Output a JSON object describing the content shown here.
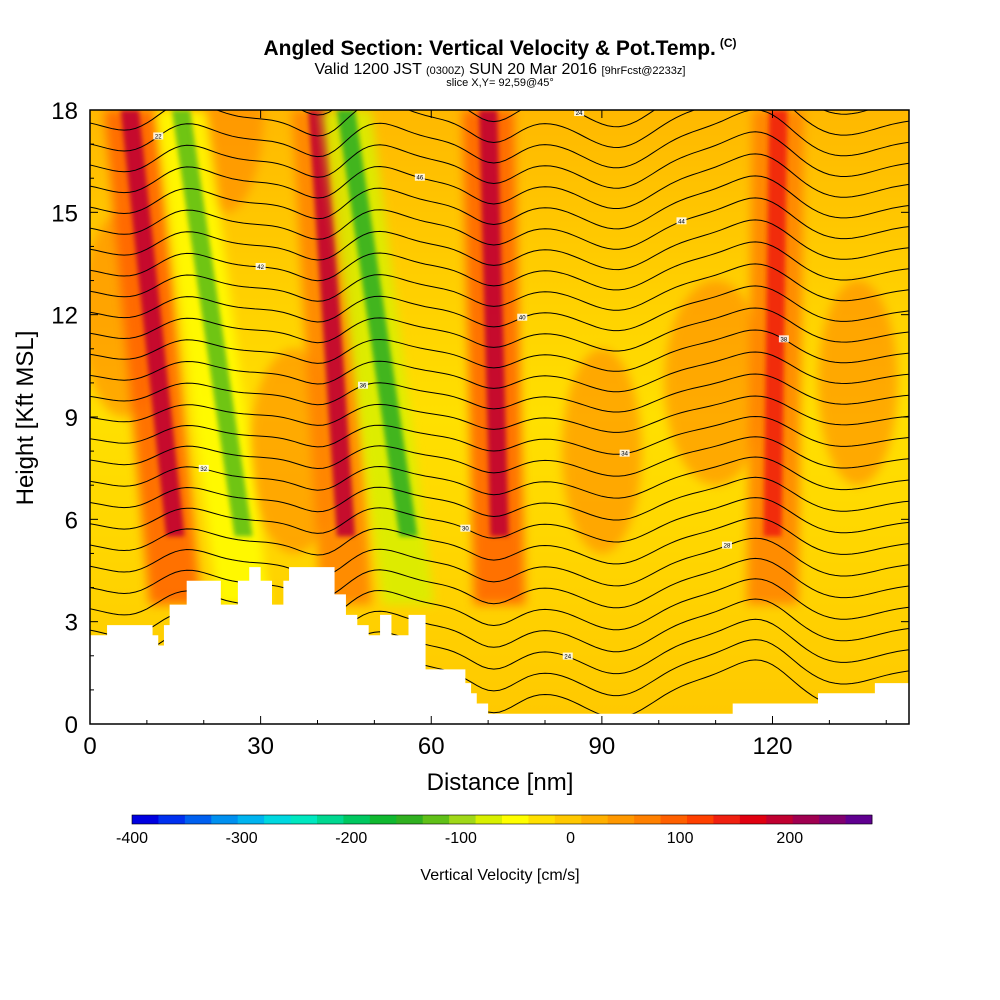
{
  "header": {
    "title": "Angled Section: Vertical Velocity & Pot.Temp.",
    "title_units": "(C)",
    "valid_prefix": "Valid 1200 JST",
    "valid_utc": "(0300Z)",
    "valid_date": "SUN 20 Mar 2016",
    "forecast": "[9hrFcst@2233z]",
    "slice": "slice X,Y= 92,59@45°"
  },
  "chart_data": {
    "type": "heatmap",
    "xlabel": "Distance [nm]",
    "ylabel": "Height [Kft MSL]",
    "xlim": [
      0,
      144
    ],
    "ylim": [
      0,
      18
    ],
    "x_ticks": [
      0,
      30,
      60,
      90,
      120
    ],
    "y_ticks": [
      0,
      3,
      6,
      9,
      12,
      15,
      18
    ],
    "grid": false,
    "field": "Vertical Velocity",
    "overlay": "Potential temperature contours (black lines)",
    "updraft_plumes": [
      {
        "x_top": 7,
        "x_bottom": 15,
        "peak_cm_s": 200
      },
      {
        "x_top": 40,
        "x_bottom": 45,
        "peak_cm_s": 180
      },
      {
        "x_top": 70,
        "x_bottom": 72,
        "peak_cm_s": 200
      },
      {
        "x_top": 121,
        "x_bottom": 120,
        "peak_cm_s": 150
      }
    ],
    "downdraft_bands": [
      {
        "x_top": 16,
        "x_bottom": 27,
        "min_cm_s": -120
      },
      {
        "x_top": 45,
        "x_bottom": 56,
        "min_cm_s": -150
      }
    ],
    "terrain_kft": {
      "x": [
        0,
        2,
        3,
        10,
        11,
        12,
        13,
        14,
        17,
        23,
        26,
        28,
        30,
        32,
        34,
        35,
        36,
        42,
        43,
        45,
        47,
        49,
        51,
        53,
        56,
        59,
        64,
        66,
        67,
        68,
        70,
        100,
        104,
        107,
        110,
        113,
        117,
        121,
        124,
        128,
        132,
        138,
        144
      ],
      "kft": [
        2.6,
        2.6,
        2.9,
        2.9,
        2.6,
        2.3,
        2.9,
        3.5,
        4.2,
        3.5,
        4.2,
        4.6,
        4.2,
        3.5,
        4.2,
        4.6,
        4.6,
        4.6,
        3.8,
        3.2,
        2.9,
        2.6,
        3.2,
        2.6,
        3.2,
        1.6,
        1.6,
        1.2,
        0.9,
        0.6,
        0.3,
        0.3,
        0.3,
        0.3,
        0.3,
        0.6,
        0.6,
        0.6,
        0.6,
        0.9,
        0.9,
        1.2,
        1.2
      ]
    },
    "contour_labels": [
      "22",
      "24",
      "26",
      "28",
      "30",
      "32",
      "34",
      "36",
      "38",
      "40",
      "42",
      "44",
      "46"
    ],
    "colorbar": {
      "label": "Vertical Velocity [cm/s]",
      "tick_labels": [
        "-400",
        "-300",
        "-200",
        "-100",
        "0",
        "100",
        "200"
      ],
      "tick_values": [
        -400,
        -300,
        -200,
        -100,
        0,
        100,
        200
      ],
      "range": [
        -400,
        275
      ],
      "colors": [
        "#0000e0",
        "#0030f0",
        "#0060f0",
        "#0090f0",
        "#00b4f0",
        "#00d8e0",
        "#00e8c0",
        "#00d890",
        "#00c860",
        "#10b830",
        "#30b020",
        "#60c018",
        "#a0d818",
        "#d8f000",
        "#ffff00",
        "#ffe000",
        "#ffc800",
        "#ffb000",
        "#ff9800",
        "#ff8000",
        "#ff6000",
        "#ff4000",
        "#f02010",
        "#e00010",
        "#c00030",
        "#a00050",
        "#800070",
        "#600090"
      ]
    }
  }
}
